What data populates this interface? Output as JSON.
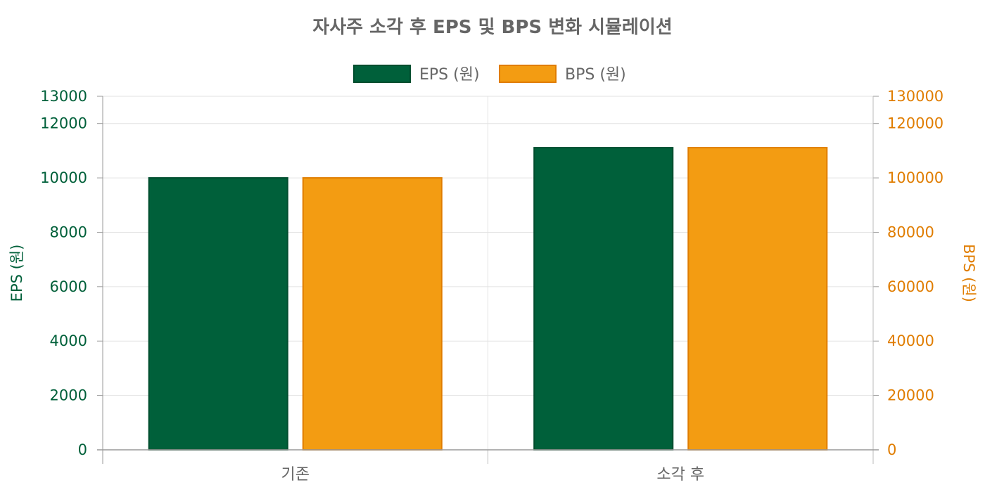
{
  "chart_data": {
    "type": "bar",
    "title": "자사주 소각 후 EPS 및 BPS 변화 시뮬레이션",
    "categories": [
      "기존",
      "소각 후"
    ],
    "series": [
      {
        "name": "EPS (원)",
        "axis": "left",
        "values": [
          10000,
          11111
        ],
        "color": "#00603a",
        "border": "#004d2e"
      },
      {
        "name": "BPS (원)",
        "axis": "right",
        "values": [
          100000,
          111111
        ],
        "color": "#f39c12",
        "border": "#e07d00"
      }
    ],
    "y_left": {
      "label": "EPS (원)",
      "ylim": [
        0,
        13000
      ],
      "ticks": [
        0,
        2000,
        4000,
        6000,
        8000,
        10000,
        12000,
        13000
      ],
      "color": "#00603a"
    },
    "y_right": {
      "label": "BPS (원)",
      "ylim": [
        0,
        130000
      ],
      "ticks": [
        0,
        20000,
        40000,
        60000,
        80000,
        100000,
        120000,
        130000
      ],
      "color": "#e07d00"
    },
    "legend_position": "top-center",
    "grid": true
  }
}
